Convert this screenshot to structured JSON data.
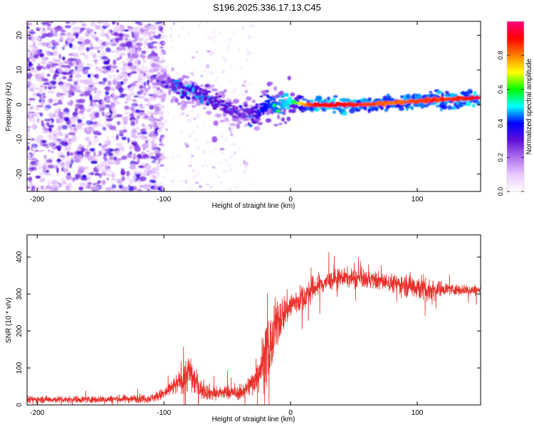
{
  "title": "S196.2025.336.17.13.C45",
  "colors": {
    "snr_line": "#e8302a",
    "scatter_purple": "#7a1fd6",
    "frame": "#000000"
  },
  "chart_data": [
    {
      "type": "heatmap",
      "xlabel": "Height of straight line (km)",
      "ylabel": "Frequency (Hz)",
      "xlim": [
        -208,
        150
      ],
      "ylim": [
        -25,
        24
      ],
      "xticks": [
        -200,
        -100,
        0,
        100
      ],
      "yticks": [
        -20,
        -10,
        0,
        10,
        20
      ],
      "colorbar": {
        "label": "Normalized spectral amplitude",
        "range": [
          0,
          1
        ],
        "ticks": [
          0.0,
          0.2,
          0.4,
          0.6,
          0.8
        ],
        "colormap": [
          "#ffffff",
          "#e8c8ff",
          "#b070f0",
          "#6010d8",
          "#0000ff",
          "#00ffff",
          "#00ff00",
          "#ffff00",
          "#ff8000",
          "#ff0000",
          "#ff0080"
        ]
      },
      "noise_region_x": [
        -208,
        -100
      ],
      "signal_track": {
        "x": [
          -100,
          -90,
          -80,
          -70,
          -60,
          -50,
          -40,
          -30,
          -20,
          -10,
          0,
          10,
          20,
          40,
          60,
          80,
          100,
          120,
          150
        ],
        "frequency": [
          7,
          5,
          4,
          3,
          1,
          -1,
          -2,
          -3,
          0,
          0,
          1,
          0,
          0,
          0,
          0,
          0.5,
          1,
          1.5,
          2
        ],
        "amplitude": [
          0.2,
          0.3,
          0.35,
          0.3,
          0.3,
          0.3,
          0.25,
          0.3,
          0.4,
          0.45,
          0.5,
          0.75,
          0.9,
          0.9,
          0.85,
          0.8,
          0.85,
          0.85,
          0.9
        ]
      }
    },
    {
      "type": "line",
      "xlabel": "Height of straight line (km)",
      "ylabel": "SNR (10 * v/v)",
      "xlim": [
        -208,
        150
      ],
      "ylim": [
        0,
        460
      ],
      "xticks": [
        -200,
        -100,
        0,
        100
      ],
      "yticks": [
        0,
        100,
        200,
        300,
        400
      ],
      "series": [
        {
          "name": "SNR",
          "x": [
            -208,
            -150,
            -110,
            -100,
            -90,
            -85,
            -80,
            -75,
            -70,
            -60,
            -50,
            -40,
            -30,
            -25,
            -20,
            -15,
            -10,
            -5,
            0,
            10,
            20,
            30,
            40,
            60,
            80,
            100,
            110,
            120,
            130,
            150
          ],
          "y": [
            15,
            15,
            18,
            30,
            55,
            75,
            90,
            60,
            40,
            30,
            35,
            30,
            60,
            95,
            130,
            165,
            230,
            250,
            270,
            290,
            320,
            335,
            345,
            340,
            330,
            320,
            310,
            315,
            312,
            310
          ],
          "noise": [
            8,
            8,
            10,
            14,
            22,
            35,
            45,
            30,
            20,
            16,
            16,
            14,
            28,
            45,
            70,
            70,
            55,
            40,
            32,
            30,
            28,
            22,
            20,
            20,
            20,
            30,
            30,
            15,
            12,
            12
          ]
        }
      ]
    }
  ]
}
